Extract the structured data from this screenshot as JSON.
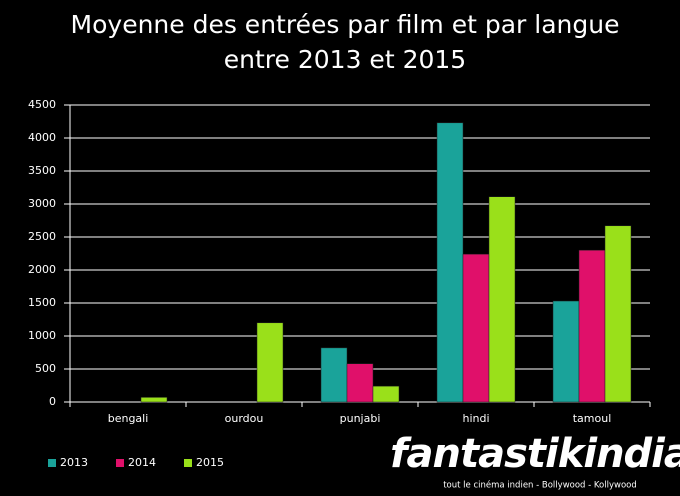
{
  "chart_data": {
    "type": "bar",
    "title": [
      "Moyenne des entrées par film et par langue",
      "entre 2013 et 2015"
    ],
    "categories": [
      "bengali",
      "ourdou",
      "punjabi",
      "hindi",
      "tamoul"
    ],
    "series": [
      {
        "name": "2013",
        "color": "#1aa39a",
        "values": [
          0,
          0,
          820,
          4230,
          1530
        ]
      },
      {
        "name": "2014",
        "color": "#e0106a",
        "values": [
          0,
          0,
          580,
          2240,
          2300
        ]
      },
      {
        "name": "2015",
        "color": "#9ae01a",
        "values": [
          70,
          1200,
          240,
          3110,
          2670
        ]
      }
    ],
    "ylim": [
      0,
      4500
    ],
    "yticks": [
      0,
      500,
      1000,
      1500,
      2000,
      2500,
      3000,
      3500,
      4000,
      4500
    ],
    "grid": true,
    "legend": "bottom-left"
  },
  "logo": {
    "name": "fantastikindia",
    "tagline": "tout le cinéma indien - Bollywood - Kollywood"
  }
}
